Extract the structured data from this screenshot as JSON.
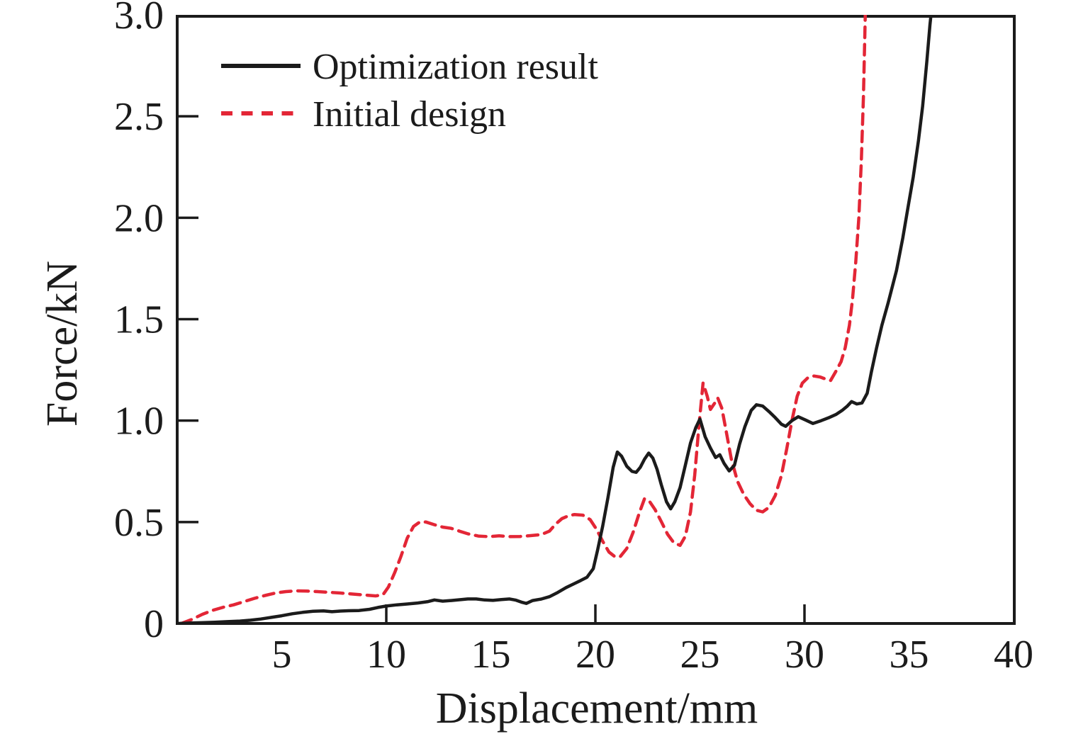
{
  "figure": {
    "background_color": "#ffffff",
    "frame_color": "#1b1b1b"
  },
  "chart_data": {
    "type": "line",
    "title": "",
    "xlabel": "Displacement/mm",
    "ylabel": "Force/kN",
    "xlim": [
      0,
      40
    ],
    "ylim": [
      0,
      3.0
    ],
    "grid": false,
    "legend_position": "upper-left-inside",
    "x_tick_label_values": [
      5,
      10,
      15,
      20,
      25,
      30,
      35,
      40
    ],
    "x_tick_label_texts": [
      "5",
      "10",
      "15",
      "20",
      "25",
      "30",
      "35",
      "40"
    ],
    "x_tick_marks": [
      10,
      20,
      30
    ],
    "y_tick_marks": [
      0.5,
      1.0,
      1.5,
      2.0,
      2.5
    ],
    "y_tick_label_values": [
      0,
      0.5,
      1.0,
      1.5,
      2.0,
      2.5,
      3.0
    ],
    "y_tick_label_texts": [
      "0",
      "0.5",
      "1.0",
      "1.5",
      "2.0",
      "2.5",
      "3.0"
    ],
    "series": [
      {
        "name": "Optimization result",
        "color": "#1b1b1b",
        "line_style": "solid",
        "line_width": 4.5,
        "points": [
          [
            0,
            0
          ],
          [
            0.6,
            0.002
          ],
          [
            1.2,
            0.004
          ],
          [
            1.8,
            0.006
          ],
          [
            2.4,
            0.009
          ],
          [
            3.0,
            0.012
          ],
          [
            3.5,
            0.016
          ],
          [
            4.0,
            0.022
          ],
          [
            4.5,
            0.03
          ],
          [
            5.0,
            0.038
          ],
          [
            5.5,
            0.048
          ],
          [
            6.0,
            0.055
          ],
          [
            6.5,
            0.06
          ],
          [
            7.0,
            0.062
          ],
          [
            7.4,
            0.058
          ],
          [
            7.8,
            0.061
          ],
          [
            8.2,
            0.063
          ],
          [
            8.7,
            0.064
          ],
          [
            9.2,
            0.07
          ],
          [
            9.6,
            0.079
          ],
          [
            10.0,
            0.086
          ],
          [
            10.5,
            0.092
          ],
          [
            11.0,
            0.096
          ],
          [
            11.5,
            0.101
          ],
          [
            12.0,
            0.108
          ],
          [
            12.3,
            0.116
          ],
          [
            12.7,
            0.11
          ],
          [
            13.1,
            0.113
          ],
          [
            13.5,
            0.117
          ],
          [
            13.9,
            0.121
          ],
          [
            14.3,
            0.121
          ],
          [
            14.7,
            0.116
          ],
          [
            15.1,
            0.114
          ],
          [
            15.5,
            0.118
          ],
          [
            15.9,
            0.121
          ],
          [
            16.2,
            0.115
          ],
          [
            16.5,
            0.104
          ],
          [
            16.7,
            0.099
          ],
          [
            17.0,
            0.113
          ],
          [
            17.4,
            0.12
          ],
          [
            17.8,
            0.132
          ],
          [
            18.2,
            0.153
          ],
          [
            18.6,
            0.177
          ],
          [
            19.0,
            0.197
          ],
          [
            19.3,
            0.212
          ],
          [
            19.6,
            0.228
          ],
          [
            19.9,
            0.27
          ],
          [
            20.1,
            0.36
          ],
          [
            20.35,
            0.48
          ],
          [
            20.6,
            0.62
          ],
          [
            20.85,
            0.77
          ],
          [
            21.05,
            0.845
          ],
          [
            21.25,
            0.825
          ],
          [
            21.5,
            0.775
          ],
          [
            21.75,
            0.75
          ],
          [
            21.95,
            0.745
          ],
          [
            22.15,
            0.77
          ],
          [
            22.35,
            0.81
          ],
          [
            22.55,
            0.84
          ],
          [
            22.75,
            0.815
          ],
          [
            22.95,
            0.76
          ],
          [
            23.15,
            0.685
          ],
          [
            23.4,
            0.6
          ],
          [
            23.6,
            0.565
          ],
          [
            23.8,
            0.6
          ],
          [
            24.05,
            0.67
          ],
          [
            24.3,
            0.78
          ],
          [
            24.55,
            0.89
          ],
          [
            24.8,
            0.965
          ],
          [
            25.0,
            1.008
          ],
          [
            25.25,
            0.92
          ],
          [
            25.5,
            0.865
          ],
          [
            25.75,
            0.818
          ],
          [
            25.95,
            0.832
          ],
          [
            26.15,
            0.79
          ],
          [
            26.4,
            0.752
          ],
          [
            26.65,
            0.78
          ],
          [
            26.9,
            0.885
          ],
          [
            27.15,
            0.97
          ],
          [
            27.45,
            1.05
          ],
          [
            27.7,
            1.078
          ],
          [
            28.0,
            1.072
          ],
          [
            28.3,
            1.045
          ],
          [
            28.6,
            1.015
          ],
          [
            28.9,
            0.982
          ],
          [
            29.1,
            0.972
          ],
          [
            29.4,
            1.0
          ],
          [
            29.7,
            1.019
          ],
          [
            30.05,
            1.003
          ],
          [
            30.4,
            0.986
          ],
          [
            30.8,
            1.0
          ],
          [
            31.2,
            1.016
          ],
          [
            31.5,
            1.03
          ],
          [
            31.8,
            1.05
          ],
          [
            32.05,
            1.072
          ],
          [
            32.25,
            1.094
          ],
          [
            32.5,
            1.082
          ],
          [
            32.75,
            1.087
          ],
          [
            33.0,
            1.135
          ],
          [
            33.2,
            1.24
          ],
          [
            33.45,
            1.36
          ],
          [
            33.7,
            1.47
          ],
          [
            34.0,
            1.58
          ],
          [
            34.4,
            1.74
          ],
          [
            34.7,
            1.9
          ],
          [
            34.95,
            2.05
          ],
          [
            35.2,
            2.2
          ],
          [
            35.45,
            2.38
          ],
          [
            35.65,
            2.55
          ],
          [
            35.85,
            2.77
          ],
          [
            36.0,
            2.95
          ],
          [
            36.1,
            3.05
          ]
        ]
      },
      {
        "name": "Initial design",
        "color": "#e32636",
        "line_style": "dashed",
        "line_width": 4.5,
        "points": [
          [
            0.2,
            0
          ],
          [
            0.7,
            0.02
          ],
          [
            1.2,
            0.045
          ],
          [
            1.7,
            0.065
          ],
          [
            2.2,
            0.08
          ],
          [
            2.7,
            0.092
          ],
          [
            3.2,
            0.108
          ],
          [
            3.7,
            0.124
          ],
          [
            4.2,
            0.138
          ],
          [
            4.7,
            0.15
          ],
          [
            5.2,
            0.157
          ],
          [
            5.7,
            0.161
          ],
          [
            6.2,
            0.16
          ],
          [
            6.7,
            0.157
          ],
          [
            7.2,
            0.154
          ],
          [
            7.8,
            0.15
          ],
          [
            8.4,
            0.145
          ],
          [
            9.0,
            0.14
          ],
          [
            9.5,
            0.136
          ],
          [
            9.85,
            0.143
          ],
          [
            10.1,
            0.18
          ],
          [
            10.4,
            0.25
          ],
          [
            10.7,
            0.33
          ],
          [
            11.0,
            0.42
          ],
          [
            11.3,
            0.478
          ],
          [
            11.6,
            0.5
          ],
          [
            11.9,
            0.5
          ],
          [
            12.3,
            0.487
          ],
          [
            12.7,
            0.475
          ],
          [
            13.1,
            0.469
          ],
          [
            13.5,
            0.455
          ],
          [
            13.9,
            0.442
          ],
          [
            14.4,
            0.431
          ],
          [
            14.9,
            0.428
          ],
          [
            15.4,
            0.432
          ],
          [
            15.9,
            0.428
          ],
          [
            16.4,
            0.429
          ],
          [
            16.9,
            0.433
          ],
          [
            17.4,
            0.438
          ],
          [
            17.8,
            0.455
          ],
          [
            18.1,
            0.49
          ],
          [
            18.4,
            0.517
          ],
          [
            18.7,
            0.53
          ],
          [
            19.0,
            0.537
          ],
          [
            19.4,
            0.534
          ],
          [
            19.75,
            0.512
          ],
          [
            20.05,
            0.465
          ],
          [
            20.35,
            0.405
          ],
          [
            20.65,
            0.352
          ],
          [
            20.95,
            0.328
          ],
          [
            21.2,
            0.331
          ],
          [
            21.5,
            0.37
          ],
          [
            21.8,
            0.448
          ],
          [
            22.1,
            0.545
          ],
          [
            22.35,
            0.615
          ],
          [
            22.6,
            0.6
          ],
          [
            22.85,
            0.562
          ],
          [
            23.15,
            0.503
          ],
          [
            23.45,
            0.44
          ],
          [
            23.75,
            0.398
          ],
          [
            24.05,
            0.385
          ],
          [
            24.3,
            0.43
          ],
          [
            24.55,
            0.55
          ],
          [
            24.75,
            0.73
          ],
          [
            24.95,
            0.97
          ],
          [
            25.15,
            1.185
          ],
          [
            25.35,
            1.12
          ],
          [
            25.5,
            1.055
          ],
          [
            25.7,
            1.085
          ],
          [
            25.85,
            1.112
          ],
          [
            26.05,
            1.06
          ],
          [
            26.25,
            0.95
          ],
          [
            26.5,
            0.81
          ],
          [
            26.8,
            0.7
          ],
          [
            27.1,
            0.635
          ],
          [
            27.4,
            0.59
          ],
          [
            27.7,
            0.558
          ],
          [
            28.0,
            0.55
          ],
          [
            28.3,
            0.572
          ],
          [
            28.6,
            0.63
          ],
          [
            28.9,
            0.73
          ],
          [
            29.15,
            0.86
          ],
          [
            29.4,
            1.0
          ],
          [
            29.65,
            1.12
          ],
          [
            29.9,
            1.185
          ],
          [
            30.15,
            1.21
          ],
          [
            30.45,
            1.22
          ],
          [
            30.75,
            1.215
          ],
          [
            31.05,
            1.203
          ],
          [
            31.25,
            1.198
          ],
          [
            31.5,
            1.243
          ],
          [
            31.75,
            1.29
          ],
          [
            31.95,
            1.36
          ],
          [
            32.15,
            1.47
          ],
          [
            32.3,
            1.6
          ],
          [
            32.45,
            1.78
          ],
          [
            32.6,
            2.0
          ],
          [
            32.72,
            2.28
          ],
          [
            32.82,
            2.6
          ],
          [
            32.92,
            3.05
          ]
        ]
      }
    ]
  }
}
